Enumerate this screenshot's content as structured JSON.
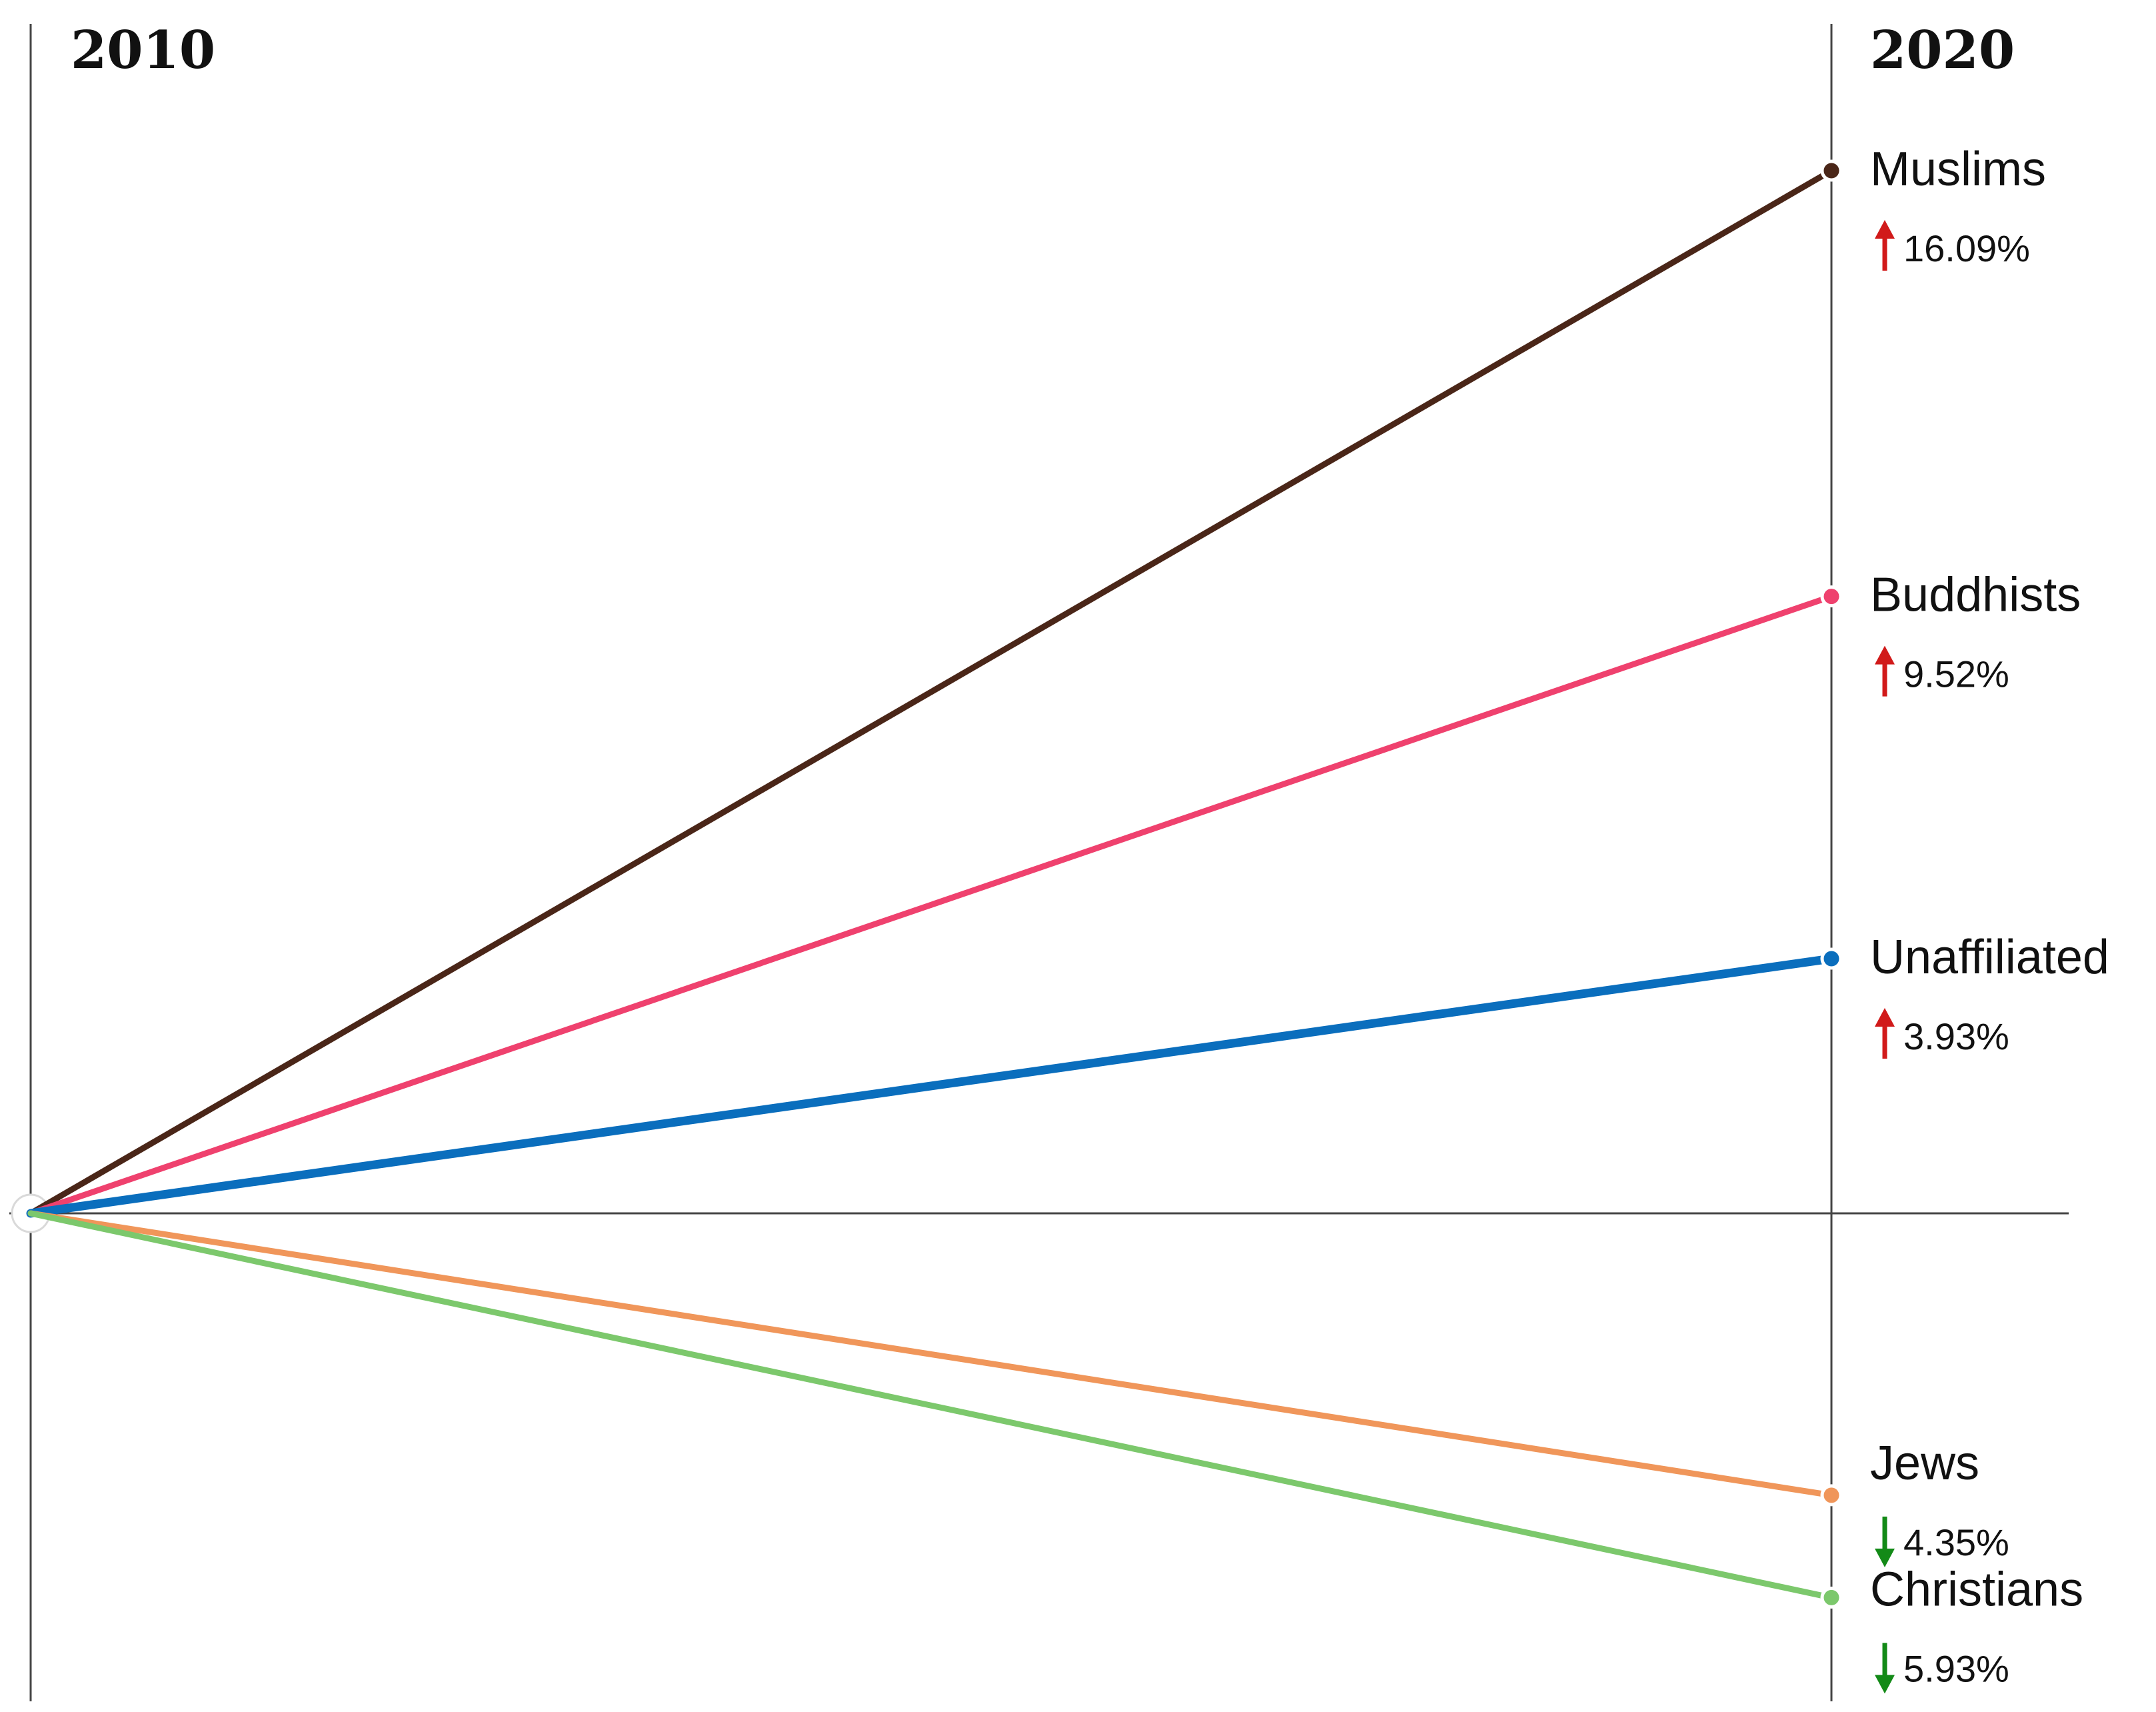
{
  "chart_data": {
    "type": "line",
    "x": [
      "2010",
      "2020"
    ],
    "baseline": 0,
    "series": [
      {
        "name": "Muslims",
        "change_label": "16.09%",
        "direction": "up",
        "values": [
          0,
          16.09
        ],
        "color": "#4a2618"
      },
      {
        "name": "Buddhists",
        "change_label": "9.52%",
        "direction": "up",
        "values": [
          0,
          9.52
        ],
        "color": "#ef416e"
      },
      {
        "name": "Unaffiliated",
        "change_label": "3.93%",
        "direction": "up",
        "values": [
          0,
          3.93
        ],
        "color": "#0a6ebd"
      },
      {
        "name": "Jews",
        "change_label": "4.35%",
        "direction": "down",
        "values": [
          0,
          -4.35
        ],
        "color": "#f0965a"
      },
      {
        "name": "Christians",
        "change_label": "5.93%",
        "direction": "down",
        "values": [
          0,
          -5.93
        ],
        "color": "#7cc86c"
      }
    ],
    "arrow_colors": {
      "up": "#d11a1a",
      "down": "#138a17"
    },
    "axis_color": "#444444",
    "grid": false,
    "legend": "none"
  }
}
